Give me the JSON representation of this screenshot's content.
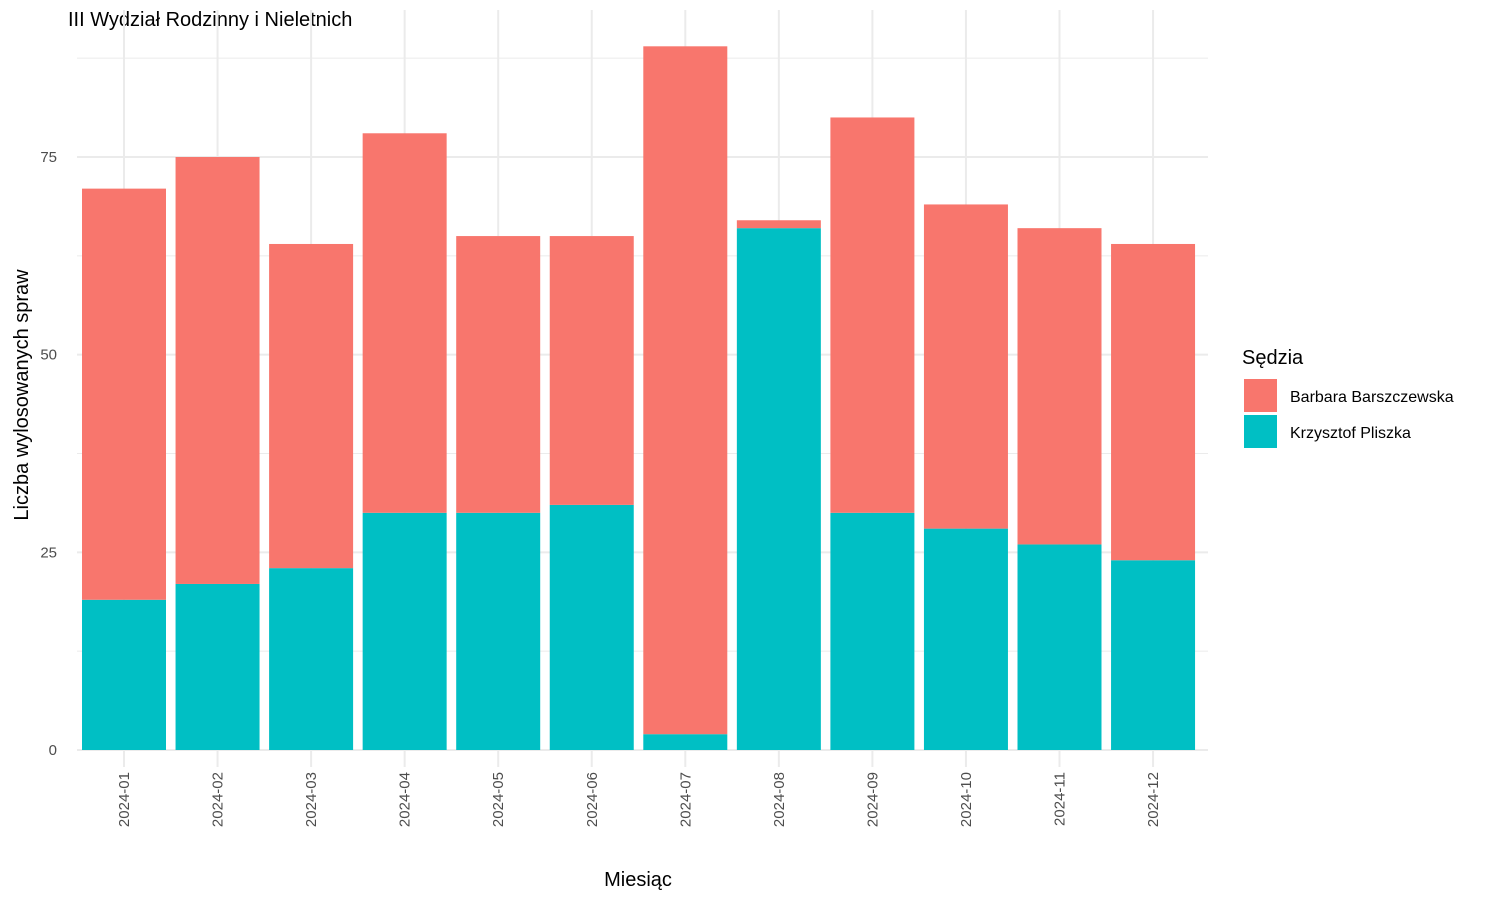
{
  "chart_data": {
    "type": "bar",
    "stacked": true,
    "title": "III Wydział Rodzinny i Nieletnich",
    "xlabel": "Miesiąc",
    "ylabel": "Liczba wylosowanych spraw",
    "ylim": [
      0,
      90
    ],
    "yticks": [
      0,
      25,
      50,
      75
    ],
    "grid": true,
    "legend": {
      "title": "Sędzia",
      "position": "right"
    },
    "categories": [
      "2024-01",
      "2024-02",
      "2024-03",
      "2024-04",
      "2024-05",
      "2024-06",
      "2024-07",
      "2024-08",
      "2024-09",
      "2024-10",
      "2024-11",
      "2024-12"
    ],
    "series": [
      {
        "name": "Krzysztof Pliszka",
        "color": "#00BFC4",
        "values": [
          19,
          21,
          23,
          30,
          30,
          31,
          2,
          66,
          30,
          28,
          26,
          24
        ]
      },
      {
        "name": "Barbara Barszczewska",
        "color": "#F8766D",
        "values": [
          52,
          54,
          41,
          48,
          35,
          34,
          87,
          1,
          50,
          41,
          40,
          40
        ]
      }
    ],
    "legend_order": [
      "Barbara Barszczewska",
      "Krzysztof Pliszka"
    ]
  }
}
